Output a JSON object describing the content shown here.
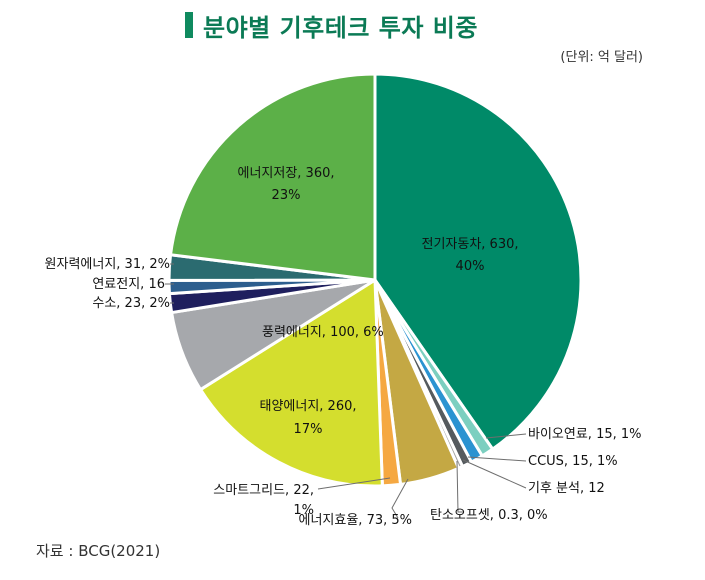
{
  "title": "분야별 기후테크 투자 비중",
  "unit": "(단위: 억 달러)",
  "source": "자료 : BCG(2021)",
  "chart_data": {
    "type": "pie",
    "slices": [
      {
        "label": "전기자동차",
        "value": 630,
        "share": "40%",
        "color": "#008a68",
        "display": [
          "전기자동차, 630,",
          "40%"
        ]
      },
      {
        "label": "바이오연료",
        "value": 15,
        "share": "1%",
        "color": "#7ccfc0",
        "display": [
          "바이오연료, 15, 1%"
        ]
      },
      {
        "label": "CCUS",
        "value": 15,
        "share": "1%",
        "color": "#2b93d1",
        "display": [
          "CCUS, 15, 1%"
        ]
      },
      {
        "label": "기후 분석",
        "value": 12,
        "share": "",
        "color": "#555a5e",
        "display": [
          "기후 분석, 12"
        ]
      },
      {
        "label": "탄소오프셋",
        "value": 0.3,
        "share": "0%",
        "color": "#a0a0a0",
        "display": [
          "탄소오프셋, 0.3, 0%"
        ]
      },
      {
        "label": "에너지효율",
        "value": 73,
        "share": "5%",
        "color": "#c4a844",
        "display": [
          "에너지효율, 73, 5%"
        ]
      },
      {
        "label": "스마트그리드",
        "value": 22,
        "share": "1%",
        "color": "#f5a842",
        "display": [
          "스마트그리드, 22,",
          "1%"
        ]
      },
      {
        "label": "태양에너지",
        "value": 260,
        "share": "17%",
        "color": "#d4de2e",
        "display": [
          "태양에너지, 260,",
          "17%"
        ]
      },
      {
        "label": "풍력에너지",
        "value": 100,
        "share": "6%",
        "color": "#a6a8ac",
        "display": [
          "풍력에너지, 100, 6%"
        ]
      },
      {
        "label": "수소",
        "value": 23,
        "share": "2%",
        "color": "#1f1f5e",
        "display": [
          "수소, 23, 2%"
        ]
      },
      {
        "label": "연료전지",
        "value": 16,
        "share": "",
        "color": "#2d5e8e",
        "display": [
          "연료전지, 16"
        ]
      },
      {
        "label": "원자력에너지",
        "value": 31,
        "share": "2%",
        "color": "#2b6b70",
        "display": [
          "원자력에너지, 31, 2%"
        ]
      },
      {
        "label": "에너지저장",
        "value": 360,
        "share": "23%",
        "color": "#5cb048",
        "display": [
          "에너지저장, 360,",
          "23%"
        ]
      }
    ]
  }
}
